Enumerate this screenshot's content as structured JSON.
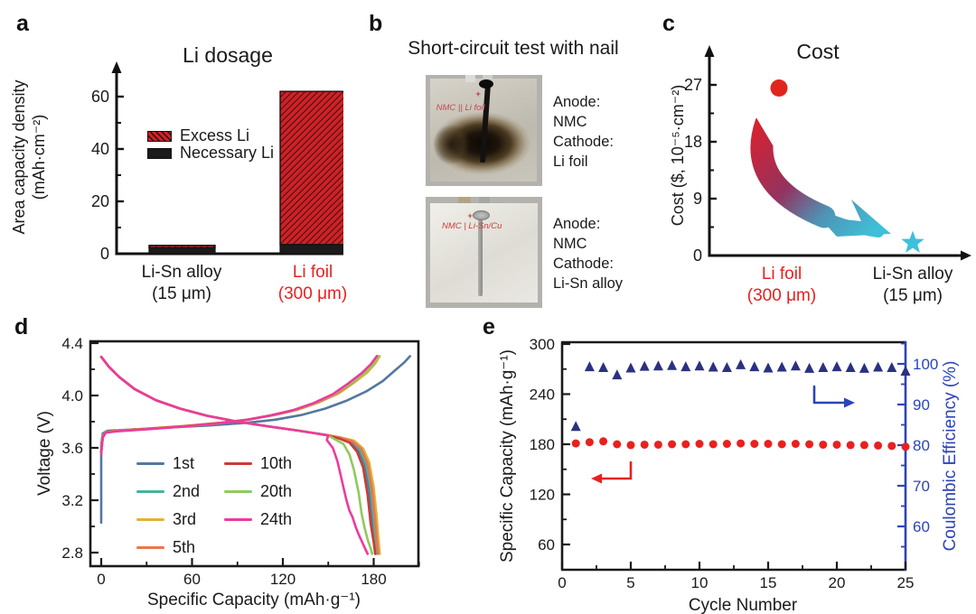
{
  "figure": {
    "letters": {
      "a": "a",
      "b": "b",
      "c": "c",
      "d": "d",
      "e": "e"
    },
    "accent_red": "#e8211f",
    "panel_b": {
      "title": "Short-circuit test with nail",
      "plus_mark": "+",
      "photos": [
        {
          "state": "burnt",
          "handwriting": "NMC || Li foil",
          "label_lines": [
            "Anode:",
            "NMC",
            "Cathode:",
            "Li foil"
          ]
        },
        {
          "state": "intact",
          "handwriting": "NMC | Li-Sn/Cu",
          "label_lines": [
            "Anode:",
            "NMC",
            "Cathode:",
            "Li-Sn alloy"
          ]
        }
      ]
    }
  },
  "chart_data": [
    {
      "panel": "a",
      "type": "bar",
      "stacked": true,
      "title": "Li dosage",
      "ylabel": "Area capacity density (mAh·cm⁻²)",
      "ylabel_lines": [
        "Area capacity density",
        "(mAh·cm⁻²)"
      ],
      "ylim": [
        0,
        70
      ],
      "yticks": [
        0,
        20,
        40,
        60
      ],
      "yticks_minor": [
        10,
        30,
        50
      ],
      "categories": [
        {
          "line1": "Li-Sn alloy",
          "line2": "(15 μm)",
          "color": "#1a1a1a"
        },
        {
          "line1": "Li foil",
          "line2": "(300 μm)",
          "color": "#e8211f"
        }
      ],
      "series": [
        {
          "name": "Excess Li",
          "color": "#ce2127",
          "pattern": "hatch",
          "values": [
            0.9,
            58.5
          ]
        },
        {
          "name": "Necessary Li",
          "color": "#1c1a1a",
          "pattern": "solid",
          "values": [
            2.3,
            3.5
          ]
        }
      ]
    },
    {
      "panel": "c",
      "type": "scatter",
      "title": "Cost",
      "ylabel": "Cost ($, 10⁻⁵·cm⁻²)",
      "ylim": [
        0,
        30
      ],
      "yticks": [
        0,
        9,
        18,
        27
      ],
      "yticks_minor": [
        4.5,
        13.5,
        22.5
      ],
      "categories": [
        {
          "line1": "Li foil",
          "line2": "(300 μm)",
          "color": "#e8211f"
        },
        {
          "line1": "Li-Sn alloy",
          "line2": "(15 μm)",
          "color": "#1a1a1a"
        }
      ],
      "points": [
        {
          "category": "Li foil (300 μm)",
          "value": 26.5,
          "marker": "circle",
          "color": "#e0251f"
        },
        {
          "category": "Li-Sn alloy (15 μm)",
          "value": 2,
          "marker": "star",
          "color": "#3fc0da"
        }
      ],
      "annotation": {
        "type": "gradient-arrow",
        "from_color": "#d8212f",
        "to_color": "#3fc0d8",
        "meaning": "cost decreases from Li foil to Li-Sn alloy"
      }
    },
    {
      "panel": "d",
      "type": "line",
      "xlabel": "Specific Capacity (mAh·g⁻¹)",
      "ylabel": "Voltage (V)",
      "xlim": [
        -8,
        210
      ],
      "ylim": [
        2.7,
        4.45
      ],
      "xticks": [
        0,
        60,
        120,
        180
      ],
      "xticks_minor": [
        30,
        90,
        150,
        210
      ],
      "yticks": [
        2.8,
        3.2,
        3.6,
        4.0,
        4.4
      ],
      "yticks_minor": [
        3.0,
        3.4,
        3.8,
        4.2
      ],
      "discharge_common": [
        [
          0,
          4.295
        ],
        [
          5,
          4.22
        ],
        [
          12,
          4.14
        ],
        [
          22,
          4.05
        ],
        [
          36,
          3.965
        ],
        [
          52,
          3.9
        ],
        [
          70,
          3.845
        ],
        [
          90,
          3.8
        ],
        [
          110,
          3.765
        ],
        [
          128,
          3.735
        ],
        [
          142,
          3.71
        ],
        [
          150,
          3.695
        ]
      ],
      "series": [
        {
          "name": "1st",
          "color": "#54789e",
          "charge": [
            [
              0,
              3.03
            ],
            [
              0,
              3.62
            ],
            [
              1,
              3.71
            ],
            [
              4,
              3.73
            ],
            [
              20,
              3.74
            ],
            [
              45,
              3.755
            ],
            [
              70,
              3.77
            ],
            [
              95,
              3.79
            ],
            [
              115,
              3.815
            ],
            [
              132,
              3.85
            ],
            [
              148,
              3.9
            ],
            [
              162,
              3.96
            ],
            [
              175,
              4.03
            ],
            [
              186,
              4.11
            ],
            [
              194,
              4.19
            ],
            [
              200,
              4.25
            ],
            [
              204,
              4.3
            ]
          ],
          "discharge_tail": [
            [
              158,
              3.675
            ],
            [
              165,
              3.645
            ],
            [
              170,
              3.58
            ],
            [
              174,
              3.47
            ],
            [
              177,
              3.28
            ],
            [
              179,
              3.06
            ],
            [
              180,
              2.93
            ],
            [
              181,
              2.79
            ]
          ]
        },
        {
          "name": "2nd",
          "color": "#45b39b",
          "charge": [
            [
              0,
              3.57
            ],
            [
              1,
              3.69
            ],
            [
              3,
              3.725
            ],
            [
              10,
              3.73
            ],
            [
              30,
              3.745
            ],
            [
              55,
              3.765
            ],
            [
              78,
              3.79
            ],
            [
              97,
              3.815
            ],
            [
              113,
              3.85
            ],
            [
              128,
              3.89
            ],
            [
              142,
              3.945
            ],
            [
              155,
              4.015
            ],
            [
              165,
              4.095
            ],
            [
              173,
              4.175
            ],
            [
              179,
              4.24
            ],
            [
              182,
              4.3
            ]
          ],
          "discharge_tail": [
            [
              158,
              3.675
            ],
            [
              166,
              3.65
            ],
            [
              171,
              3.585
            ],
            [
              175,
              3.475
            ],
            [
              178,
              3.29
            ],
            [
              180,
              3.06
            ],
            [
              181,
              2.92
            ],
            [
              182,
              2.79
            ]
          ]
        },
        {
          "name": "3rd",
          "color": "#e2b13c",
          "charge": [
            [
              0,
              3.58
            ],
            [
              1,
              3.69
            ],
            [
              3,
              3.72
            ],
            [
              10,
              3.732
            ],
            [
              30,
              3.747
            ],
            [
              56,
              3.768
            ],
            [
              79,
              3.792
            ],
            [
              98,
              3.818
            ],
            [
              115,
              3.852
            ],
            [
              130,
              3.892
            ],
            [
              144,
              3.948
            ],
            [
              157,
              4.018
            ],
            [
              167,
              4.098
            ],
            [
              176,
              4.178
            ],
            [
              181,
              4.245
            ],
            [
              184,
              4.3
            ]
          ],
          "discharge_tail": [
            [
              158,
              3.68
            ],
            [
              167,
              3.655
            ],
            [
              173,
              3.595
            ],
            [
              177,
              3.49
            ],
            [
              180,
              3.3
            ],
            [
              182,
              3.07
            ],
            [
              183,
              2.92
            ],
            [
              184,
              2.79
            ]
          ]
        },
        {
          "name": "5th",
          "color": "#e8764f",
          "charge": [
            [
              0,
              3.575
            ],
            [
              1,
              3.685
            ],
            [
              3,
              3.722
            ],
            [
              10,
              3.73
            ],
            [
              30,
              3.746
            ],
            [
              55,
              3.766
            ],
            [
              78,
              3.79
            ],
            [
              97,
              3.816
            ],
            [
              114,
              3.85
            ],
            [
              129,
              3.89
            ],
            [
              143,
              3.946
            ],
            [
              156,
              4.016
            ],
            [
              166,
              4.096
            ],
            [
              174,
              4.176
            ],
            [
              180,
              4.242
            ],
            [
              183,
              4.3
            ]
          ],
          "discharge_tail": [
            [
              158,
              3.678
            ],
            [
              166,
              3.65
            ],
            [
              172,
              3.59
            ],
            [
              176,
              3.48
            ],
            [
              179,
              3.28
            ],
            [
              181,
              3.04
            ],
            [
              182,
              2.9
            ],
            [
              183,
              2.79
            ]
          ]
        },
        {
          "name": "10th",
          "color": "#cc3a35",
          "charge": [
            [
              0,
              3.565
            ],
            [
              1,
              3.682
            ],
            [
              3,
              3.72
            ],
            [
              10,
              3.728
            ],
            [
              30,
              3.744
            ],
            [
              55,
              3.764
            ],
            [
              77,
              3.788
            ],
            [
              96,
              3.814
            ],
            [
              112,
              3.848
            ],
            [
              127,
              3.888
            ],
            [
              141,
              3.944
            ],
            [
              154,
              4.014
            ],
            [
              164,
              4.094
            ],
            [
              173,
              4.174
            ],
            [
              179,
              4.24
            ],
            [
              182.5,
              4.3
            ]
          ],
          "discharge_tail": [
            [
              157,
              3.672
            ],
            [
              164,
              3.64
            ],
            [
              169,
              3.57
            ],
            [
              173,
              3.45
            ],
            [
              176,
              3.24
            ],
            [
              178,
              3.02
            ],
            [
              180,
              2.88
            ],
            [
              181,
              2.79
            ]
          ]
        },
        {
          "name": "20th",
          "color": "#90c95e",
          "charge": [
            [
              0,
              3.56
            ],
            [
              1,
              3.68
            ],
            [
              3,
              3.718
            ],
            [
              10,
              3.727
            ],
            [
              30,
              3.743
            ],
            [
              55,
              3.763
            ],
            [
              77,
              3.787
            ],
            [
              96,
              3.813
            ],
            [
              112,
              3.846
            ],
            [
              127,
              3.886
            ],
            [
              141,
              3.942
            ],
            [
              154,
              4.012
            ],
            [
              165,
              4.092
            ],
            [
              174,
              4.172
            ],
            [
              180,
              4.24
            ],
            [
              183,
              4.3
            ]
          ],
          "discharge_tail": [
            [
              154,
              3.668
            ],
            [
              160,
              3.63
            ],
            [
              164,
              3.55
            ],
            [
              167,
              3.43
            ],
            [
              170,
              3.26
            ],
            [
              172,
              3.1
            ],
            [
              174,
              2.99
            ],
            [
              176,
              2.9
            ],
            [
              178,
              2.83
            ],
            [
              179,
              2.79
            ]
          ]
        },
        {
          "name": "24th",
          "color": "#ee3a9c",
          "charge": [
            [
              0,
              3.555
            ],
            [
              1,
              3.678
            ],
            [
              3,
              3.716
            ],
            [
              10,
              3.726
            ],
            [
              30,
              3.742
            ],
            [
              54,
              3.762
            ],
            [
              76,
              3.786
            ],
            [
              95,
              3.812
            ],
            [
              111,
              3.845
            ],
            [
              126,
              3.885
            ],
            [
              140,
              3.94
            ],
            [
              153,
              4.01
            ],
            [
              163,
              4.09
            ],
            [
              172,
              4.17
            ],
            [
              178,
              4.238
            ],
            [
              182,
              4.3
            ]
          ],
          "discharge_tail": [
            [
              149,
              3.66
            ],
            [
              153,
              3.6
            ],
            [
              156,
              3.5
            ],
            [
              158,
              3.4
            ],
            [
              160,
              3.3
            ],
            [
              162,
              3.2
            ],
            [
              164,
              3.12
            ],
            [
              166,
              3.07
            ],
            [
              168,
              3.0
            ],
            [
              170,
              2.94
            ],
            [
              172,
              2.89
            ],
            [
              174,
              2.84
            ],
            [
              176,
              2.79
            ]
          ]
        }
      ]
    },
    {
      "panel": "e",
      "type": "scatter-dual-axis",
      "xlabel": "Cycle Number",
      "ylabel_left": "Specific Capacity (mAh·g⁻¹)",
      "ylabel_right": "Coulombic Efficiency (%)",
      "xlim": [
        0,
        25
      ],
      "xticks": [
        0,
        5,
        10,
        15,
        20,
        25
      ],
      "ylim_left": [
        30,
        300
      ],
      "yticks_left": [
        60,
        120,
        180,
        240,
        300
      ],
      "yticks_left_minor": [
        90,
        150,
        210,
        270
      ],
      "ylim_right": [
        49,
        105.5
      ],
      "yticks_right": [
        60,
        70,
        80,
        90,
        100
      ],
      "yticks_right_minor": [
        55,
        65,
        75,
        85,
        95,
        105
      ],
      "left_color": "#1a1a1a",
      "right_color": "#2b44b8",
      "series": [
        {
          "name": "Specific Capacity",
          "axis": "left",
          "marker": "circle",
          "color": "#e8211f",
          "x": [
            1,
            2,
            3,
            4,
            5,
            6,
            7,
            8,
            9,
            10,
            11,
            12,
            13,
            14,
            15,
            16,
            17,
            18,
            19,
            20,
            21,
            22,
            23,
            24,
            25
          ],
          "y": [
            181,
            182.5,
            183.5,
            180,
            179,
            179.5,
            179.5,
            180,
            180,
            180.5,
            180,
            180.5,
            181,
            180.5,
            180.5,
            180,
            180.5,
            180,
            179.5,
            179.5,
            179,
            179,
            178.5,
            178,
            177
          ]
        },
        {
          "name": "Coulombic Efficiency",
          "axis": "right",
          "marker": "triangle",
          "color": "#2b3181",
          "x": [
            1,
            2,
            3,
            4,
            5,
            6,
            7,
            8,
            9,
            10,
            11,
            12,
            13,
            14,
            15,
            16,
            17,
            18,
            19,
            20,
            21,
            22,
            23,
            24,
            25
          ],
          "y": [
            84.5,
            99.2,
            99.0,
            97.2,
            98.9,
            99.3,
            99.4,
            99.5,
            99.2,
            99.4,
            99.1,
            99.0,
            99.7,
            99.2,
            98.9,
            99.1,
            99.4,
            98.8,
            99.0,
            99.2,
            99.0,
            98.8,
            99.1,
            99.0,
            98.1
          ]
        }
      ]
    }
  ]
}
